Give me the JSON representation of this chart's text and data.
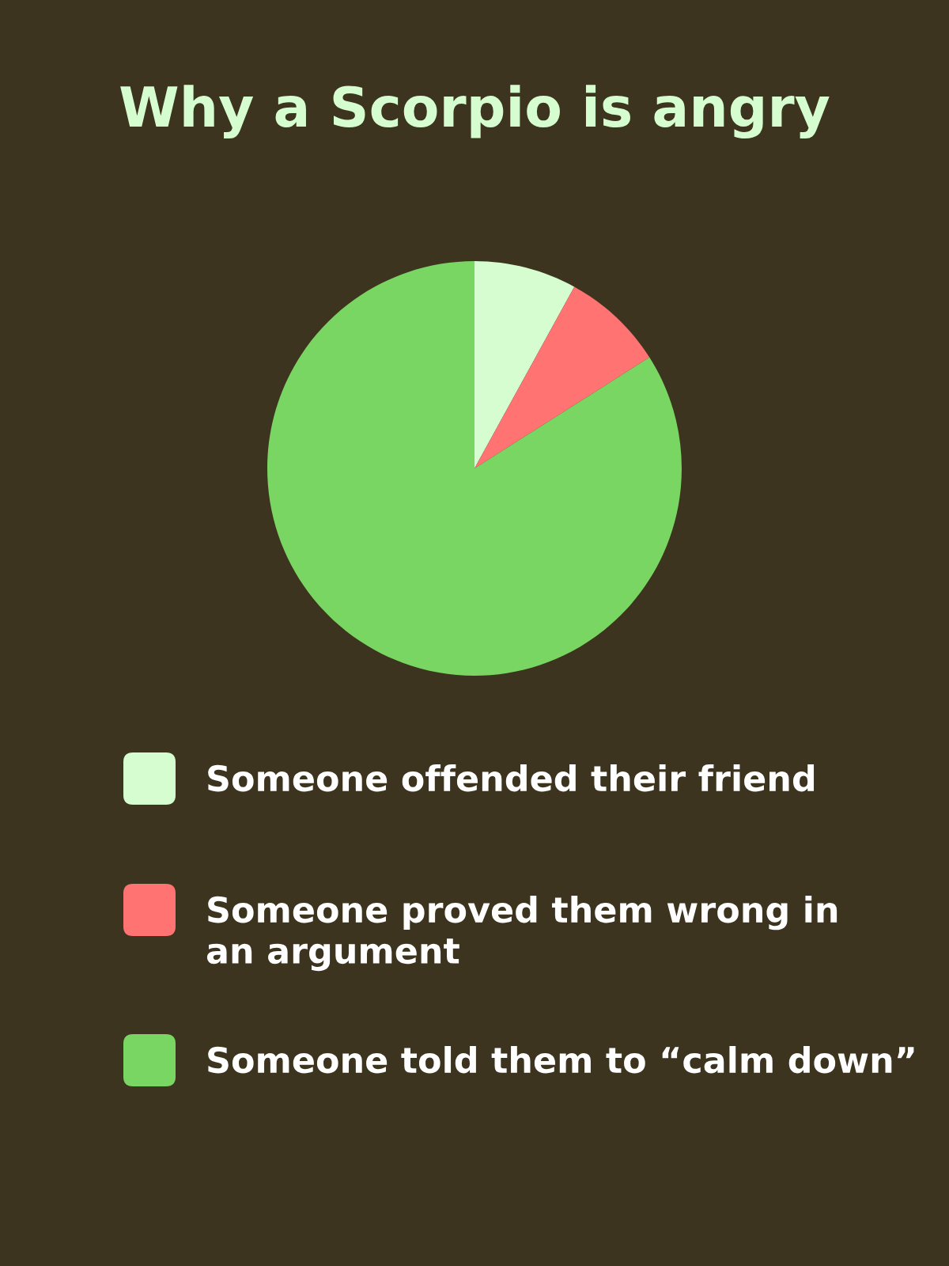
{
  "chart_data": {
    "type": "pie",
    "title": "Why a Scorpio is angry",
    "categories": [
      "Someone offended their friend",
      "Someone proved them wrong in\nan argument",
      "Someone told them to “calm down”"
    ],
    "values": [
      8,
      8,
      84
    ],
    "colors": [
      "#d6fdd0",
      "#ff7373",
      "#7ad662"
    ],
    "legend": "bottom"
  }
}
